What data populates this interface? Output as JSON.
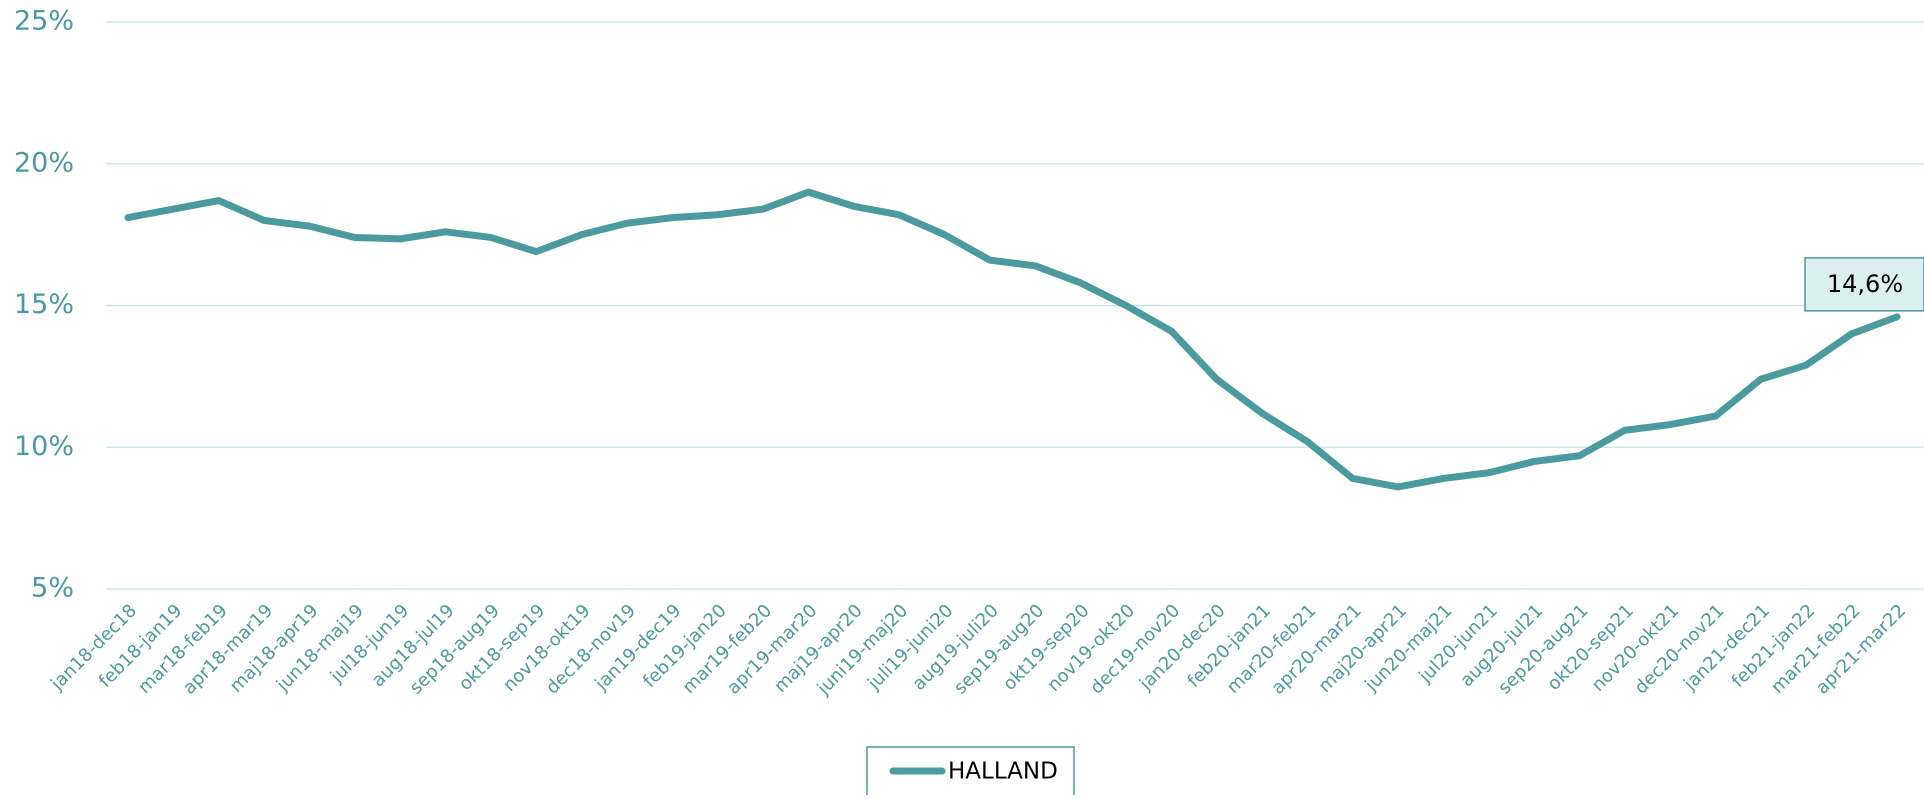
{
  "chart_data": {
    "type": "line",
    "categories": [
      "jan18-dec18",
      "feb18-jan19",
      "mar18-feb19",
      "apr18-mar19",
      "maj18-apr19",
      "jun18-maj19",
      "jul18-jun19",
      "aug18-jul19",
      "sep18-aug19",
      "okt18-sep19",
      "nov18-okt19",
      "dec18-nov19",
      "jan19-dec19",
      "feb19-jan20",
      "mar19-feb20",
      "apr19-mar20",
      "maj19-apr20",
      "juni19-maj20",
      "juli19-juni20",
      "aug19-juli20",
      "sep19-aug20",
      "okt19-sep20",
      "nov19-okt20",
      "dec19-nov20",
      "jan20-dec20",
      "feb20-jan21",
      "mar20-feb21",
      "apr20-mar21",
      "maj20-apr21",
      "jun20-maj21",
      "jul20-jun21",
      "aug20-jul21",
      "sep20-aug21",
      "okt20-sep21",
      "nov20-okt21",
      "dec20-nov21",
      "jan21-dec21",
      "feb21-jan22",
      "mar21-feb22",
      "apr21-mar22"
    ],
    "series": [
      {
        "name": "HALLAND",
        "color": "#4a9aa0",
        "values": [
          18.1,
          18.4,
          18.7,
          18.0,
          17.8,
          17.4,
          17.35,
          17.6,
          17.4,
          16.9,
          17.5,
          17.9,
          18.1,
          18.2,
          18.4,
          19.0,
          18.5,
          18.2,
          17.5,
          16.6,
          16.4,
          15.8,
          15.0,
          14.1,
          12.4,
          11.2,
          10.2,
          8.9,
          8.6,
          8.9,
          9.1,
          9.5,
          9.7,
          10.6,
          10.8,
          11.1,
          12.4,
          12.9,
          14.0,
          14.6
        ],
        "value_labels": [
          null,
          null,
          null,
          null,
          null,
          null,
          null,
          null,
          null,
          null,
          null,
          null,
          null,
          null,
          null,
          null,
          null,
          null,
          null,
          null,
          null,
          null,
          null,
          null,
          null,
          null,
          null,
          null,
          null,
          null,
          null,
          null,
          null,
          null,
          null,
          null,
          null,
          null,
          null,
          "14,6%"
        ]
      }
    ],
    "ylim": [
      5,
      25
    ],
    "yticks": [
      {
        "value": 5,
        "label": "5%"
      },
      {
        "value": 10,
        "label": "10%"
      },
      {
        "value": 15,
        "label": "15%"
      },
      {
        "value": 20,
        "label": "20%"
      },
      {
        "value": 25,
        "label": "25%"
      }
    ],
    "grid": true,
    "legend": "bottom"
  }
}
